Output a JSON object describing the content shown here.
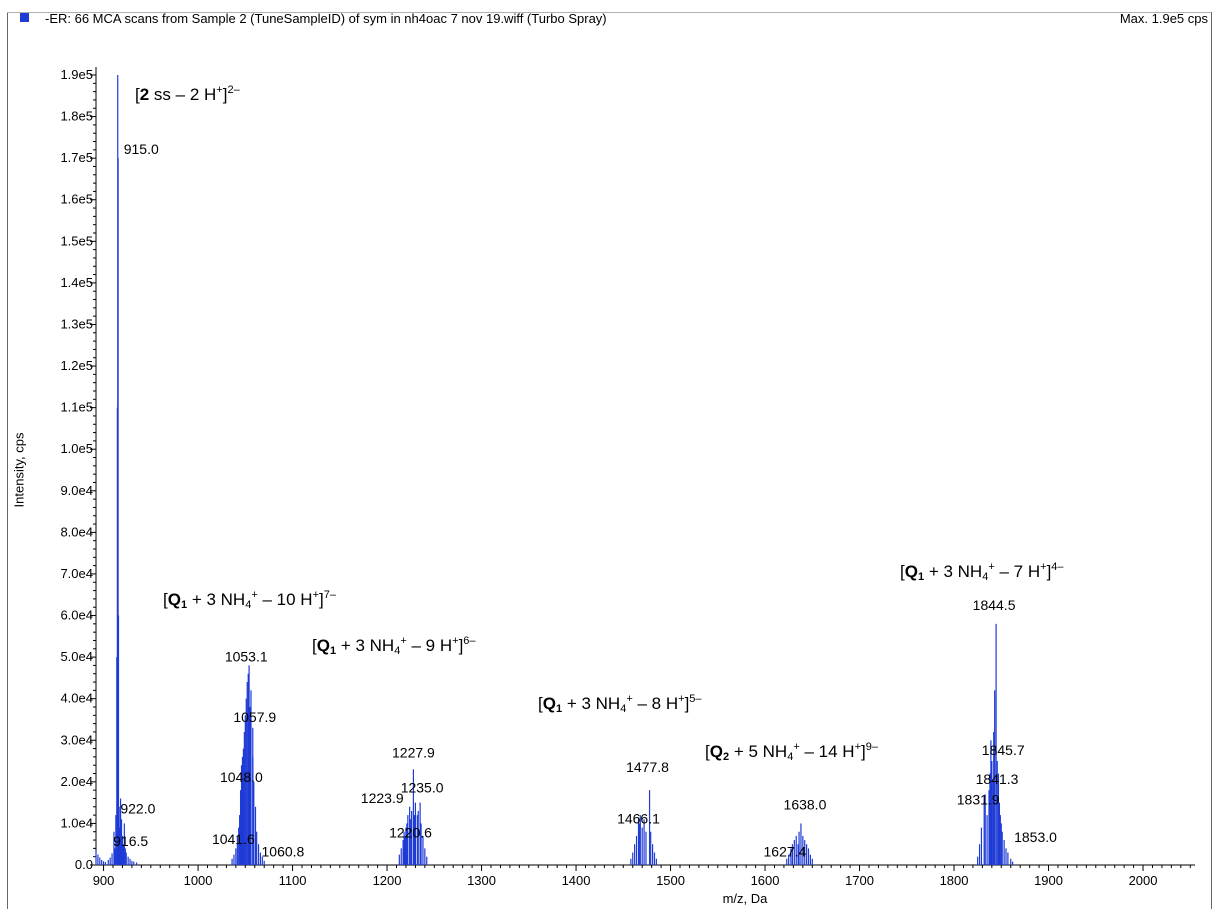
{
  "header": {
    "title": "-ER: 66 MCA scans from Sample 2 (TuneSampleID) of sym in nh4oac 7 nov 19.wiff (Turbo Spray)",
    "max": "Max. 1.9e5 cps",
    "series_color": "#1f3bd6"
  },
  "chart_data": {
    "type": "bar",
    "xlabel": "m/z, Da",
    "ylabel": "Intensity, cps",
    "xlim": [
      892,
      2055
    ],
    "ylim": [
      0,
      190000
    ],
    "x_ticks": [
      900,
      1000,
      1100,
      1200,
      1300,
      1400,
      1500,
      1600,
      1700,
      1800,
      1900,
      2000
    ],
    "y_ticks": [
      {
        "value": 0,
        "label": "0.0"
      },
      {
        "value": 10000,
        "label": "1.0e4"
      },
      {
        "value": 20000,
        "label": "2.0e4"
      },
      {
        "value": 30000,
        "label": "3.0e4"
      },
      {
        "value": 40000,
        "label": "4.0e4"
      },
      {
        "value": 50000,
        "label": "5.0e4"
      },
      {
        "value": 60000,
        "label": "6.0e4"
      },
      {
        "value": 70000,
        "label": "7.0e4"
      },
      {
        "value": 80000,
        "label": "8.0e4"
      },
      {
        "value": 90000,
        "label": "9.0e4"
      },
      {
        "value": 100000,
        "label": "1.0e5"
      },
      {
        "value": 110000,
        "label": "1.1e5"
      },
      {
        "value": 120000,
        "label": "1.2e5"
      },
      {
        "value": 130000,
        "label": "1.3e5"
      },
      {
        "value": 140000,
        "label": "1.4e5"
      },
      {
        "value": 150000,
        "label": "1.5e5"
      },
      {
        "value": 160000,
        "label": "1.6e5"
      },
      {
        "value": 170000,
        "label": "1.7e5"
      },
      {
        "value": 180000,
        "label": "1.8e5"
      },
      {
        "value": 190000,
        "label": "1.9e5"
      }
    ],
    "sticks": [
      [
        892,
        3500
      ],
      [
        894,
        2500
      ],
      [
        896,
        1800
      ],
      [
        898,
        1200
      ],
      [
        900,
        900
      ],
      [
        902,
        700
      ],
      [
        905,
        1200
      ],
      [
        907,
        1800
      ],
      [
        909,
        2800
      ],
      [
        911,
        8000
      ],
      [
        912,
        4000
      ],
      [
        913,
        12000
      ],
      [
        914,
        50000
      ],
      [
        914.6,
        110000
      ],
      [
        915.0,
        190000
      ],
      [
        915.4,
        170000
      ],
      [
        915.8,
        60000
      ],
      [
        916.5,
        14000
      ],
      [
        917,
        9000
      ],
      [
        918,
        16000
      ],
      [
        918.5,
        6000
      ],
      [
        919,
        11000
      ],
      [
        920,
        7000
      ],
      [
        921,
        5000
      ],
      [
        922.0,
        10000
      ],
      [
        923,
        4000
      ],
      [
        924,
        3000
      ],
      [
        926,
        2000
      ],
      [
        928,
        1500
      ],
      [
        930,
        1000
      ],
      [
        932,
        800
      ],
      [
        935,
        600
      ],
      [
        1036,
        1500
      ],
      [
        1038,
        2500
      ],
      [
        1040,
        4000
      ],
      [
        1041.6,
        7000
      ],
      [
        1043,
        9000
      ],
      [
        1044,
        12000
      ],
      [
        1045,
        18000
      ],
      [
        1046,
        24000
      ],
      [
        1047,
        26000
      ],
      [
        1048.0,
        28000
      ],
      [
        1049,
        32000
      ],
      [
        1050,
        36000
      ],
      [
        1051,
        40000
      ],
      [
        1052,
        44000
      ],
      [
        1053.1,
        46000
      ],
      [
        1054,
        48000
      ],
      [
        1055,
        38000
      ],
      [
        1056,
        42000
      ],
      [
        1057.9,
        33000
      ],
      [
        1058,
        26000
      ],
      [
        1059,
        20000
      ],
      [
        1060.8,
        14000
      ],
      [
        1062,
        8000
      ],
      [
        1064,
        5000
      ],
      [
        1066,
        3000
      ],
      [
        1068,
        2000
      ],
      [
        1070,
        1000
      ],
      [
        1213,
        2500
      ],
      [
        1215,
        4000
      ],
      [
        1217,
        6000
      ],
      [
        1218,
        8000
      ],
      [
        1219,
        7000
      ],
      [
        1220,
        9000
      ],
      [
        1220.6,
        8500
      ],
      [
        1221,
        10000
      ],
      [
        1222,
        12000
      ],
      [
        1223.9,
        14000
      ],
      [
        1225,
        11000
      ],
      [
        1226,
        13000
      ],
      [
        1227.9,
        23000
      ],
      [
        1229,
        12000
      ],
      [
        1230,
        15000
      ],
      [
        1232,
        12000
      ],
      [
        1233,
        13000
      ],
      [
        1235.0,
        15000
      ],
      [
        1236,
        10000
      ],
      [
        1238,
        7000
      ],
      [
        1240,
        4000
      ],
      [
        1242,
        2000
      ],
      [
        1458,
        1500
      ],
      [
        1460,
        3000
      ],
      [
        1462,
        5000
      ],
      [
        1464,
        7000
      ],
      [
        1466.1,
        11000
      ],
      [
        1467,
        10000
      ],
      [
        1468,
        12000
      ],
      [
        1470,
        9000
      ],
      [
        1472,
        11000
      ],
      [
        1474,
        8000
      ],
      [
        1477.8,
        18000
      ],
      [
        1479,
        8000
      ],
      [
        1481,
        5000
      ],
      [
        1483,
        3000
      ],
      [
        1485,
        1500
      ],
      [
        1623,
        1500
      ],
      [
        1625,
        2500
      ],
      [
        1627.4,
        4000
      ],
      [
        1629,
        5000
      ],
      [
        1631,
        6000
      ],
      [
        1633,
        7000
      ],
      [
        1635,
        5000
      ],
      [
        1636,
        8000
      ],
      [
        1638.0,
        10000
      ],
      [
        1640,
        7000
      ],
      [
        1642,
        6000
      ],
      [
        1644,
        5000
      ],
      [
        1646,
        4000
      ],
      [
        1648,
        2500
      ],
      [
        1650,
        1500
      ],
      [
        1825,
        2000
      ],
      [
        1827,
        5000
      ],
      [
        1829,
        9000
      ],
      [
        1831.9,
        15000
      ],
      [
        1833,
        17000
      ],
      [
        1835,
        12000
      ],
      [
        1837,
        18000
      ],
      [
        1838,
        22000
      ],
      [
        1839,
        30000
      ],
      [
        1840,
        25000
      ],
      [
        1841.3,
        20000
      ],
      [
        1842,
        32000
      ],
      [
        1843,
        42000
      ],
      [
        1844.5,
        58000
      ],
      [
        1845.7,
        25000
      ],
      [
        1847,
        22000
      ],
      [
        1848,
        15000
      ],
      [
        1849,
        12000
      ],
      [
        1850,
        10000
      ],
      [
        1851,
        8000
      ],
      [
        1853.0,
        6000
      ],
      [
        1855,
        4000
      ],
      [
        1857,
        3000
      ],
      [
        1860,
        1500
      ],
      [
        1862,
        800
      ]
    ],
    "peak_labels": [
      {
        "label": "915.0",
        "x": 915.0,
        "y": 170000
      },
      {
        "label": "922.0",
        "x": 922.0,
        "y": 10000
      },
      {
        "label": "916.5",
        "x": 916.5,
        "y": 6000
      },
      {
        "label": "1053.1",
        "x": 1053.1,
        "y": 46000
      },
      {
        "label": "1057.9",
        "x": 1057.9,
        "y": 33000
      },
      {
        "label": "1048.0",
        "x": 1048.0,
        "y": 18000
      },
      {
        "label": "1041.6",
        "x": 1041.6,
        "y": 6000
      },
      {
        "label": "1060.8",
        "x": 1060.8,
        "y": 3000
      },
      {
        "label": "1227.9",
        "x": 1227.9,
        "y": 23000
      },
      {
        "label": "1235.0",
        "x": 1235.0,
        "y": 15000
      },
      {
        "label": "1223.9",
        "x": 1223.9,
        "y": 14000
      },
      {
        "label": "1220.6",
        "x": 1220.6,
        "y": 8500
      },
      {
        "label": "1477.8",
        "x": 1477.8,
        "y": 18000
      },
      {
        "label": "1466.1",
        "x": 1466.1,
        "y": 11000
      },
      {
        "label": "1638.0",
        "x": 1638.0,
        "y": 10000
      },
      {
        "label": "1627.4",
        "x": 1627.4,
        "y": 4000
      },
      {
        "label": "1844.5",
        "x": 1844.5,
        "y": 58000
      },
      {
        "label": "1845.7",
        "x": 1845.7,
        "y": 25000
      },
      {
        "label": "1841.3",
        "x": 1841.3,
        "y": 20000
      },
      {
        "label": "1831.9",
        "x": 1831.9,
        "y": 15000
      },
      {
        "label": "1853.0",
        "x": 1853.0,
        "y": 6000
      }
    ],
    "annotations": {
      "ss": {
        "open": "[",
        "bold": "2",
        "rest": " ss – 2 H",
        "plus": "+",
        "close": "]",
        "charge": "2–"
      },
      "q1_7": {
        "open": "[",
        "bold": "Q",
        "sub1": "1",
        "mid": " + 3 NH",
        "sub2": "4",
        "plus1": "+",
        "rest": " – 10 H",
        "plus2": "+",
        "close": "]",
        "charge": "7–"
      },
      "q1_6": {
        "open": "[",
        "bold": "Q",
        "sub1": "1",
        "mid": " + 3 NH",
        "sub2": "4",
        "plus1": "+",
        "rest": " – 9 H",
        "plus2": "+",
        "close": "]",
        "charge": "6–"
      },
      "q1_5": {
        "open": "[",
        "bold": "Q",
        "sub1": "1",
        "mid": " + 3 NH",
        "sub2": "4",
        "plus1": "+",
        "rest": " – 8 H",
        "plus2": "+",
        "close": "]",
        "charge": "5–"
      },
      "q2_9": {
        "open": "[",
        "bold": "Q",
        "sub1": "2",
        "mid": " + 5 NH",
        "sub2": "4",
        "plus1": "+",
        "rest": " – 14 H",
        "plus2": "+",
        "close": "]",
        "charge": "9–"
      },
      "q1_4": {
        "open": "[",
        "bold": "Q",
        "sub1": "1",
        "mid": " + 3 NH",
        "sub2": "4",
        "plus1": "+",
        "rest": " – 7 H",
        "plus2": "+",
        "close": "]",
        "charge": "4–"
      }
    }
  }
}
